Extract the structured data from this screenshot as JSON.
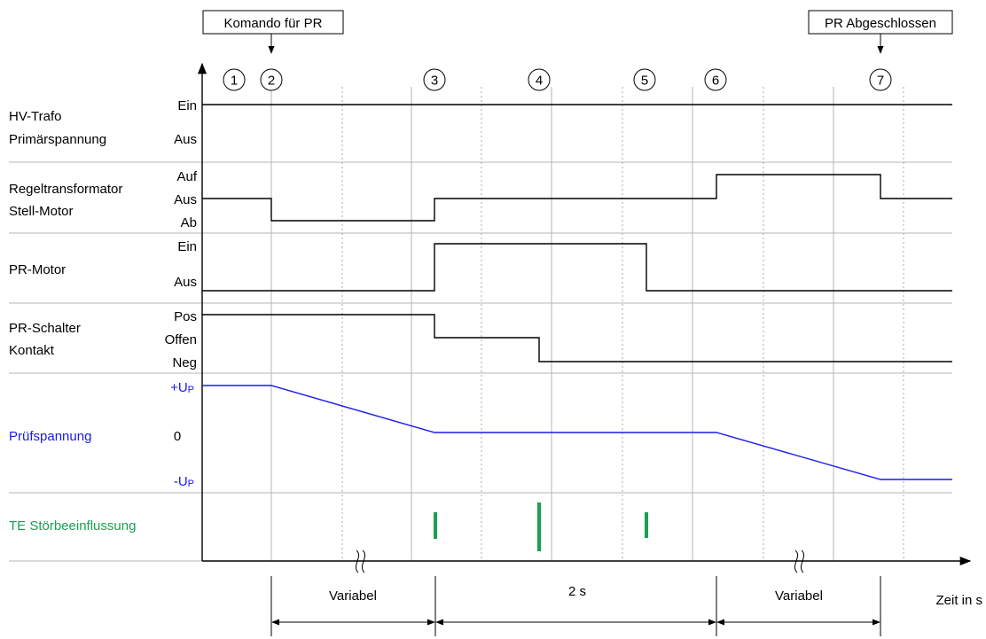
{
  "commands": {
    "start": "Komando für PR",
    "end": "PR Abgeschlossen"
  },
  "steps": [
    "1",
    "2",
    "3",
    "4",
    "5",
    "6",
    "7"
  ],
  "signals": [
    {
      "id": "hv",
      "name_lines": [
        "HV-Trafo",
        "Primärspannung"
      ],
      "levels": [
        "Ein",
        "Aus"
      ]
    },
    {
      "id": "regel",
      "name_lines": [
        "Regeltransformator",
        "Stell-Motor"
      ],
      "levels": [
        "Auf",
        "Aus",
        "Ab"
      ]
    },
    {
      "id": "prmotor",
      "name_lines": [
        "PR-Motor"
      ],
      "levels": [
        "Ein",
        "Aus"
      ]
    },
    {
      "id": "schalter",
      "name_lines": [
        "PR-Schalter",
        "Kontakt"
      ],
      "levels": [
        "Pos",
        "Offen",
        "Neg"
      ]
    },
    {
      "id": "pruef",
      "name_lines": [
        "Prüfspannung"
      ],
      "levels_text": {
        "pos_main": "+U",
        "pos_sub": "P",
        "zero": "0",
        "neg_main": "-U",
        "neg_sub": "P"
      }
    },
    {
      "id": "te",
      "name_lines": [
        "TE Störbeeinflussung"
      ]
    }
  ],
  "durations": {
    "first": "Variabel",
    "middle": "2 s",
    "last": "Variabel"
  },
  "axis_label": "Zeit in s",
  "colors": {
    "signal": "#000000",
    "pruef": "#1a1aee",
    "te": "#1aa050",
    "grid": "#b4b4b4"
  }
}
